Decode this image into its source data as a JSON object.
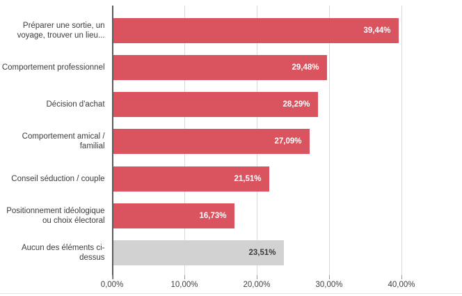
{
  "chart_data": {
    "type": "bar",
    "orientation": "horizontal",
    "title": "",
    "xlabel": "",
    "ylabel": "",
    "grid": true,
    "legend": "none",
    "xlim": [
      0,
      48
    ],
    "x_ticks": [
      "0,00%",
      "10,00%",
      "20,00%",
      "30,00%",
      "40,00%"
    ],
    "x_tick_values": [
      0,
      10,
      20,
      30,
      40
    ],
    "categories": [
      "Préparer une sortie, un voyage, trouver un lieu...",
      "Comportement professionnel",
      "Décision d'achat",
      "Comportement amical / familial",
      "Conseil séduction / couple",
      "Positionnement idéologique ou choix électoral",
      "Aucun des éléments ci-dessus"
    ],
    "values": [
      39.44,
      29.48,
      28.29,
      27.09,
      21.51,
      16.73,
      23.51
    ],
    "value_labels": [
      "39,44%",
      "29,48%",
      "28,29%",
      "27,09%",
      "21,51%",
      "16,73%",
      "23,51%"
    ],
    "bar_colors": [
      "#d9545f",
      "#d9545f",
      "#d9545f",
      "#d9545f",
      "#d9545f",
      "#d9545f",
      "#d2d2d2"
    ],
    "value_label_colors": [
      "#ffffff",
      "#ffffff",
      "#ffffff",
      "#ffffff",
      "#ffffff",
      "#ffffff",
      "#3c3c3c"
    ]
  },
  "colors": {
    "accent_bar": "#d9545f",
    "neutral_bar": "#d2d2d2",
    "gridline": "#dadada",
    "axis_line": "#5a5a5a",
    "text": "#3c3c3c"
  }
}
